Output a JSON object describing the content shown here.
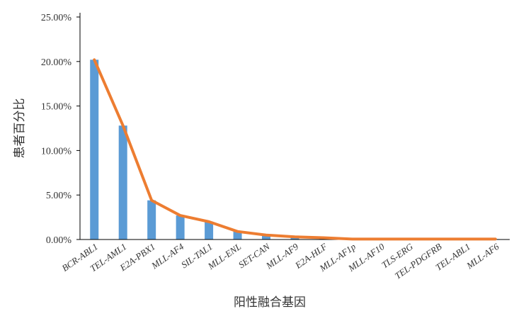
{
  "chart_data": {
    "type": "combo",
    "x_label": "阳性融合基因",
    "y_label": "患者百分比",
    "categories": [
      "BCR-ABL1",
      "TEL-AML1",
      "E2A-PBX1",
      "MLL-AF4",
      "SIL-TAL1",
      "MLL-ENL",
      "SET-CAN",
      "MLL-AF9",
      "E2A-HLF",
      "MLL-AF1p",
      "MLL-AF10",
      "TLS-ERG",
      "TEL-PDGFRB",
      "TEL-ABL1",
      "MLL-AF6"
    ],
    "series": [
      {
        "type": "bar",
        "color": "#5b9bd5",
        "values": [
          20.2,
          12.8,
          4.4,
          2.7,
          2.0,
          0.9,
          0.5,
          0.3,
          0.2,
          0.05,
          0.05,
          0.05,
          0.05,
          0.05,
          0.05
        ]
      },
      {
        "type": "line",
        "color": "#ed7d31",
        "values": [
          20.2,
          12.8,
          4.4,
          2.7,
          2.0,
          0.9,
          0.5,
          0.3,
          0.2,
          0.05,
          0.05,
          0.05,
          0.05,
          0.05,
          0.05
        ]
      }
    ],
    "ylim": [
      0,
      25
    ],
    "yticks": [
      {
        "value": 0,
        "label": "0.00%"
      },
      {
        "value": 5,
        "label": "5.00%"
      },
      {
        "value": 10,
        "label": "10.00%"
      },
      {
        "value": 15,
        "label": "15.00%"
      },
      {
        "value": 20,
        "label": "20.00%"
      },
      {
        "value": 25,
        "label": "25.00%"
      }
    ]
  }
}
